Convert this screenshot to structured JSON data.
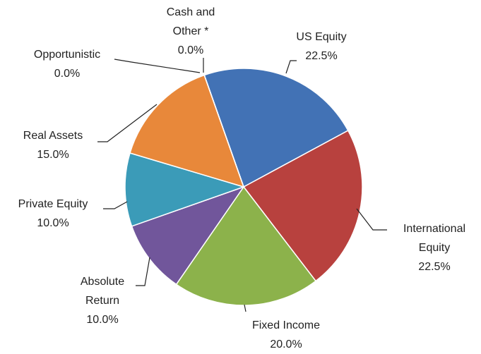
{
  "chart_data": {
    "type": "pie",
    "categories": [
      "US Equity",
      "International\nEquity",
      "Fixed Income",
      "Absolute\nReturn",
      "Private Equity",
      "Real Assets",
      "Opportunistic",
      "Cash and\nOther *"
    ],
    "values": [
      22.5,
      22.5,
      20.0,
      10.0,
      10.0,
      15.0,
      0.0,
      0.0
    ],
    "value_labels": [
      "22.5%",
      "22.5%",
      "20.0%",
      "10.0%",
      "10.0%",
      "15.0%",
      "0.0%",
      "0.0%"
    ],
    "colors": [
      "#4272b5",
      "#b8413e",
      "#8cb24b",
      "#71569b",
      "#3b9bb8",
      "#e8883a",
      "#a3a3a3",
      "#6f6f6f"
    ]
  }
}
